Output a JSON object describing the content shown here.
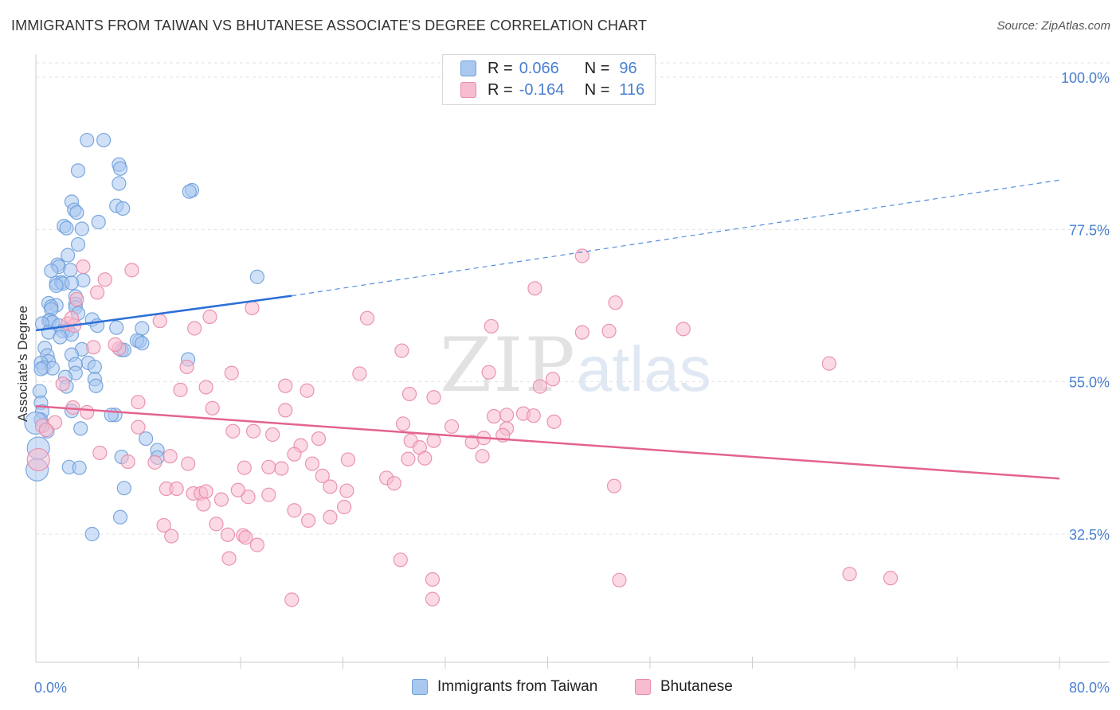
{
  "header": {
    "title": "IMMIGRANTS FROM TAIWAN VS BHUTANESE ASSOCIATE'S DEGREE CORRELATION CHART",
    "source": "Source: ZipAtlas.com"
  },
  "watermark": {
    "zip": "ZIP",
    "atlas": "atlas"
  },
  "legend": {
    "rows": [
      {
        "r_label": "R =",
        "r_value": "0.066",
        "n_label": "N =",
        "n_value": "96",
        "color": "#a9c8f0",
        "border": "#6f9fdc"
      },
      {
        "r_label": "R =",
        "r_value": "-0.164",
        "n_label": "N =",
        "n_value": "116",
        "color": "#f7bcd0",
        "border": "#e88aa8"
      }
    ]
  },
  "bottom_legend": {
    "taiwan": "Immigrants from Taiwan",
    "bhutanese": "Bhutanese"
  },
  "chart_data": {
    "type": "scatter",
    "title": "IMMIGRANTS FROM TAIWAN VS BHUTANESE ASSOCIATE'S DEGREE CORRELATION CHART",
    "xlabel": "",
    "ylabel": "Associate's Degree",
    "xlim": [
      0,
      80
    ],
    "ylim": [
      18,
      100
    ],
    "x_tick_labels": [
      "0.0%",
      "80.0%"
    ],
    "y_ticks": [
      32.5,
      55.0,
      77.5,
      100.0
    ],
    "y_tick_labels": [
      "32.5%",
      "55.0%",
      "77.5%",
      "100.0%"
    ],
    "grid": true,
    "legend_position": "top-center",
    "colors": {
      "taiwan": "#2a6fd6",
      "bhutanese": "#e4638e",
      "taiwan_fill": "#a9c8f0",
      "bhutanese_fill": "#f7bcd0",
      "tick_text": "#4a7fd0"
    },
    "series": [
      {
        "name": "Immigrants from Taiwan",
        "r": 0.066,
        "n": 96,
        "trend": {
          "x": [
            0,
            20
          ],
          "y": [
            62.6,
            67.7
          ],
          "dashed_to": [
            80,
            84.8
          ]
        },
        "points": [
          [
            4.0,
            90.7
          ],
          [
            5.3,
            90.7
          ],
          [
            6.5,
            87.1
          ],
          [
            6.6,
            86.5
          ],
          [
            3.3,
            86.2
          ],
          [
            6.5,
            84.3
          ],
          [
            12.2,
            83.3
          ],
          [
            12.0,
            83.1
          ],
          [
            2.8,
            81.6
          ],
          [
            6.3,
            81.0
          ],
          [
            6.8,
            80.6
          ],
          [
            3.0,
            80.4
          ],
          [
            3.2,
            80.0
          ],
          [
            4.9,
            78.6
          ],
          [
            2.2,
            78.0
          ],
          [
            2.4,
            77.7
          ],
          [
            3.6,
            77.6
          ],
          [
            3.3,
            75.3
          ],
          [
            2.5,
            73.7
          ],
          [
            1.7,
            72.3
          ],
          [
            1.8,
            72.0
          ],
          [
            1.2,
            71.4
          ],
          [
            2.7,
            71.5
          ],
          [
            17.3,
            70.5
          ],
          [
            3.7,
            70.0
          ],
          [
            1.6,
            69.6
          ],
          [
            2.0,
            69.7
          ],
          [
            2.1,
            69.5
          ],
          [
            2.8,
            69.6
          ],
          [
            1.6,
            69.2
          ],
          [
            3.1,
            67.6
          ],
          [
            1.0,
            66.6
          ],
          [
            3.1,
            66.5
          ],
          [
            1.6,
            66.3
          ],
          [
            1.2,
            66.1
          ],
          [
            3.1,
            66.0
          ],
          [
            1.2,
            65.7
          ],
          [
            3.3,
            65.1
          ],
          [
            1.0,
            64.0
          ],
          [
            1.1,
            64.1
          ],
          [
            1.3,
            63.8
          ],
          [
            4.4,
            64.2
          ],
          [
            0.5,
            63.6
          ],
          [
            1.8,
            63.3
          ],
          [
            4.8,
            63.3
          ],
          [
            6.3,
            63.0
          ],
          [
            8.3,
            62.9
          ],
          [
            2.5,
            62.6
          ],
          [
            2.1,
            62.5
          ],
          [
            1.0,
            62.3
          ],
          [
            2.8,
            62.0
          ],
          [
            1.9,
            61.6
          ],
          [
            8.1,
            61.0
          ],
          [
            7.9,
            61.1
          ],
          [
            8.3,
            60.7
          ],
          [
            0.7,
            60.0
          ],
          [
            3.6,
            59.8
          ],
          [
            6.7,
            59.7
          ],
          [
            6.9,
            59.7
          ],
          [
            0.9,
            58.9
          ],
          [
            2.8,
            59.0
          ],
          [
            1.0,
            58.0
          ],
          [
            0.4,
            57.8
          ],
          [
            11.9,
            58.3
          ],
          [
            4.1,
            57.8
          ],
          [
            3.1,
            57.6
          ],
          [
            4.6,
            57.2
          ],
          [
            0.6,
            57.1
          ],
          [
            1.3,
            57.0
          ],
          [
            0.4,
            56.9
          ],
          [
            3.1,
            56.3
          ],
          [
            4.6,
            55.4
          ],
          [
            2.3,
            55.7
          ],
          [
            4.7,
            54.4
          ],
          [
            2.4,
            54.3
          ],
          [
            0.3,
            53.6
          ],
          [
            0.4,
            51.9
          ],
          [
            2.8,
            50.7
          ],
          [
            0.5,
            50.6
          ],
          [
            6.2,
            50.1
          ],
          [
            0.4,
            49.4
          ],
          [
            3.5,
            48.1
          ],
          [
            0.9,
            47.7
          ],
          [
            5.9,
            50.1
          ],
          [
            8.6,
            46.6
          ],
          [
            9.5,
            44.9
          ],
          [
            6.7,
            43.9
          ],
          [
            9.5,
            43.8
          ],
          [
            2.6,
            42.4
          ],
          [
            3.4,
            42.3
          ],
          [
            6.9,
            39.3
          ],
          [
            6.6,
            35.0
          ],
          [
            4.4,
            32.5
          ],
          [
            0.1,
            42.0
          ],
          [
            0.0,
            48.9
          ],
          [
            0.2,
            45.2
          ]
        ]
      },
      {
        "name": "Bhutanese",
        "r": -0.164,
        "n": 116,
        "trend": {
          "x": [
            0,
            80
          ],
          "y": [
            51.4,
            40.7
          ]
        },
        "points": [
          [
            7.5,
            71.5
          ],
          [
            3.7,
            72.0
          ],
          [
            42.7,
            73.6
          ],
          [
            39.0,
            68.8
          ],
          [
            5.4,
            70.1
          ],
          [
            45.3,
            66.7
          ],
          [
            2.5,
            63.6
          ],
          [
            3.0,
            63.3
          ],
          [
            16.9,
            65.9
          ],
          [
            13.6,
            64.6
          ],
          [
            25.9,
            64.4
          ],
          [
            35.6,
            63.2
          ],
          [
            44.8,
            62.5
          ],
          [
            42.7,
            62.3
          ],
          [
            50.6,
            62.8
          ],
          [
            2.8,
            64.4
          ],
          [
            12.4,
            62.9
          ],
          [
            9.7,
            64.0
          ],
          [
            28.6,
            59.6
          ],
          [
            4.8,
            68.2
          ],
          [
            3.2,
            67.2
          ],
          [
            4.5,
            60.1
          ],
          [
            6.5,
            59.9
          ],
          [
            6.2,
            60.5
          ],
          [
            62.0,
            57.7
          ],
          [
            11.8,
            57.2
          ],
          [
            15.3,
            56.3
          ],
          [
            25.3,
            56.2
          ],
          [
            21.2,
            53.7
          ],
          [
            29.2,
            53.2
          ],
          [
            35.4,
            56.4
          ],
          [
            13.3,
            54.2
          ],
          [
            19.5,
            54.4
          ],
          [
            39.4,
            54.3
          ],
          [
            40.4,
            55.4
          ],
          [
            2.1,
            54.7
          ],
          [
            11.3,
            53.8
          ],
          [
            31.1,
            52.7
          ],
          [
            8.0,
            52.0
          ],
          [
            4.0,
            50.5
          ],
          [
            13.8,
            51.1
          ],
          [
            19.5,
            50.8
          ],
          [
            35.8,
            49.9
          ],
          [
            36.8,
            50.1
          ],
          [
            38.1,
            50.3
          ],
          [
            38.9,
            50.0
          ],
          [
            40.5,
            49.1
          ],
          [
            28.7,
            48.8
          ],
          [
            32.5,
            48.4
          ],
          [
            36.8,
            48.1
          ],
          [
            1.5,
            49.0
          ],
          [
            8.0,
            48.3
          ],
          [
            15.4,
            47.7
          ],
          [
            17.0,
            47.7
          ],
          [
            18.5,
            47.2
          ],
          [
            22.1,
            46.6
          ],
          [
            29.3,
            46.3
          ],
          [
            31.1,
            46.3
          ],
          [
            34.1,
            46.1
          ],
          [
            35.0,
            46.7
          ],
          [
            36.5,
            47.1
          ],
          [
            20.7,
            45.6
          ],
          [
            30.0,
            45.3
          ],
          [
            34.9,
            44.0
          ],
          [
            5.0,
            44.5
          ],
          [
            7.2,
            43.2
          ],
          [
            9.3,
            43.1
          ],
          [
            10.5,
            44.0
          ],
          [
            11.9,
            42.9
          ],
          [
            16.3,
            42.3
          ],
          [
            18.2,
            42.4
          ],
          [
            19.2,
            42.2
          ],
          [
            20.2,
            44.3
          ],
          [
            21.6,
            42.9
          ],
          [
            24.4,
            43.5
          ],
          [
            22.4,
            41.1
          ],
          [
            29.1,
            43.6
          ],
          [
            30.4,
            43.7
          ],
          [
            27.4,
            40.8
          ],
          [
            28.0,
            40.0
          ],
          [
            23.0,
            39.5
          ],
          [
            24.3,
            38.9
          ],
          [
            18.2,
            38.3
          ],
          [
            16.6,
            38.0
          ],
          [
            12.3,
            38.5
          ],
          [
            12.9,
            38.5
          ],
          [
            13.3,
            38.8
          ],
          [
            15.8,
            39.0
          ],
          [
            10.2,
            39.2
          ],
          [
            11.0,
            39.2
          ],
          [
            14.5,
            37.6
          ],
          [
            13.1,
            36.9
          ],
          [
            20.2,
            36.0
          ],
          [
            24.1,
            36.5
          ],
          [
            23.0,
            35.0
          ],
          [
            21.3,
            34.5
          ],
          [
            14.1,
            34.0
          ],
          [
            15.0,
            32.4
          ],
          [
            10.0,
            33.8
          ],
          [
            10.6,
            32.2
          ],
          [
            16.2,
            32.3
          ],
          [
            17.3,
            30.9
          ],
          [
            15.1,
            28.9
          ],
          [
            28.5,
            28.7
          ],
          [
            63.6,
            26.6
          ],
          [
            66.8,
            26.0
          ],
          [
            45.6,
            25.7
          ],
          [
            31.0,
            25.8
          ],
          [
            31.0,
            22.9
          ],
          [
            20.0,
            22.8
          ],
          [
            16.4,
            32.0
          ],
          [
            45.2,
            39.6
          ],
          [
            0.5,
            48.5
          ],
          [
            0.2,
            43.5
          ],
          [
            0.8,
            47.9
          ],
          [
            2.9,
            51.2
          ]
        ]
      }
    ]
  }
}
